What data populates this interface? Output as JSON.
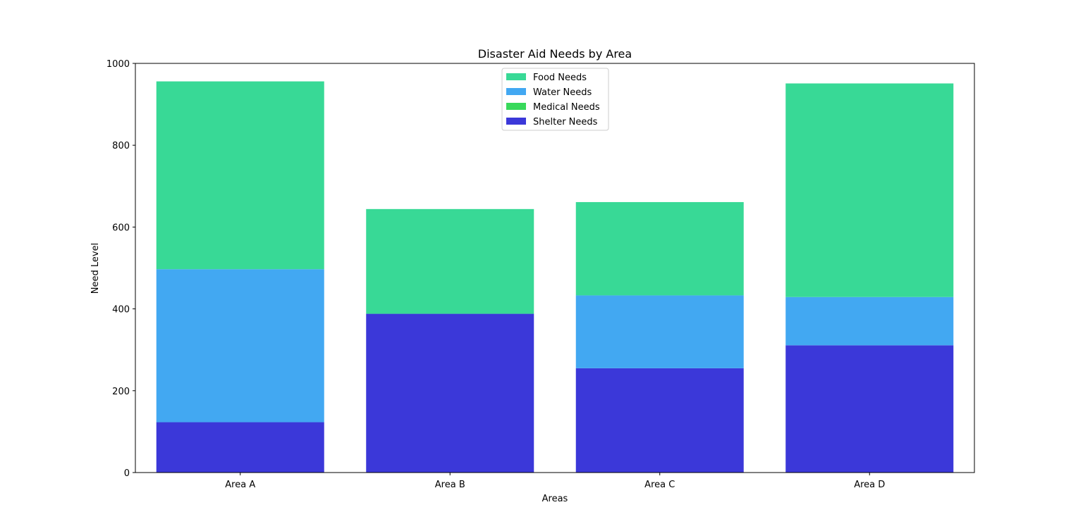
{
  "chart_data": {
    "type": "bar",
    "stacked": true,
    "title": "Disaster Aid Needs by Area",
    "xlabel": "Areas",
    "ylabel": "Need Level",
    "categories": [
      "Area A",
      "Area B",
      "Area C",
      "Area D"
    ],
    "ylim": [
      0,
      1000
    ],
    "yticks": [
      0,
      200,
      400,
      600,
      800,
      1000
    ],
    "grid": false,
    "legend_position": "top-center",
    "series": [
      {
        "name": "Shelter Needs",
        "color": "#3b38d9",
        "values": [
          123,
          388,
          255,
          311
        ]
      },
      {
        "name": "Medical Needs",
        "color": "#38d95b",
        "values": [
          0,
          0,
          0,
          0
        ]
      },
      {
        "name": "Water Needs",
        "color": "#42a8f2",
        "values": [
          374,
          0,
          178,
          118
        ]
      },
      {
        "name": "Food Needs",
        "color": "#38d996",
        "values": [
          459,
          256,
          228,
          522
        ]
      }
    ],
    "legend_order": [
      "Food Needs",
      "Water Needs",
      "Medical Needs",
      "Shelter Needs"
    ]
  }
}
